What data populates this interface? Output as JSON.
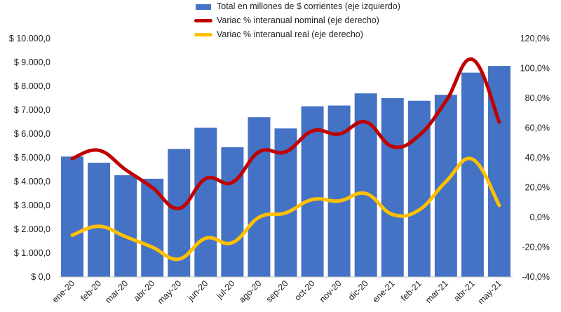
{
  "chart_data": {
    "type": "bar",
    "categories": [
      "ene-20",
      "feb-20",
      "mar-20",
      "abr-20",
      "may-20",
      "jun-20",
      "jul-20",
      "ago-20",
      "sep-20",
      "oct-20",
      "nov-20",
      "dic-20",
      "ene-21",
      "feb-21",
      "mar-21",
      "abr-21",
      "may-21"
    ],
    "series": [
      {
        "name": "Total en millones de $ corrientes (eje izquierdo)",
        "type": "bar",
        "axis": "left",
        "color": "#4472C4",
        "values": [
          5050,
          4790,
          4270,
          4120,
          5370,
          6260,
          5440,
          6700,
          6230,
          7160,
          7190,
          7700,
          7500,
          7390,
          7640,
          8570,
          8850
        ]
      },
      {
        "name": "Variac % interanual nominal (eje derecho)",
        "type": "line",
        "axis": "right",
        "color": "#C00000",
        "values": [
          39.5,
          45.0,
          32.0,
          20.0,
          6.0,
          26.0,
          23.5,
          44.0,
          44.0,
          58.0,
          56.0,
          64.0,
          47.5,
          55.0,
          78.0,
          106.0,
          64.0
        ]
      },
      {
        "name": "Variac % interanual real (eje derecho)",
        "type": "line",
        "axis": "right",
        "color": "#FFC000",
        "values": [
          -12.0,
          -6.0,
          -13.0,
          -20.0,
          -28.0,
          -14.0,
          -17.0,
          0.0,
          3.0,
          12.0,
          11.0,
          16.0,
          2.0,
          5.0,
          24.0,
          39.0,
          8.0
        ]
      }
    ],
    "ylim_left": [
      0,
      10000
    ],
    "yticks_left": [
      "$ 0,0",
      "$ 1.000,0",
      "$ 2.000,0",
      "$ 3.000,0",
      "$ 4.000,0",
      "$ 5.000,0",
      "$ 6.000,0",
      "$ 7.000,0",
      "$ 8.000,0",
      "$ 9.000,0",
      "$ 10.000,0"
    ],
    "ylim_right": [
      -40,
      120
    ],
    "yticks_right": [
      "-40,0%",
      "-20,0%",
      "0,0%",
      "20,0%",
      "40,0%",
      "60,0%",
      "80,0%",
      "100,0%",
      "120,0%"
    ],
    "legend_position": "top-center",
    "grid": false
  }
}
